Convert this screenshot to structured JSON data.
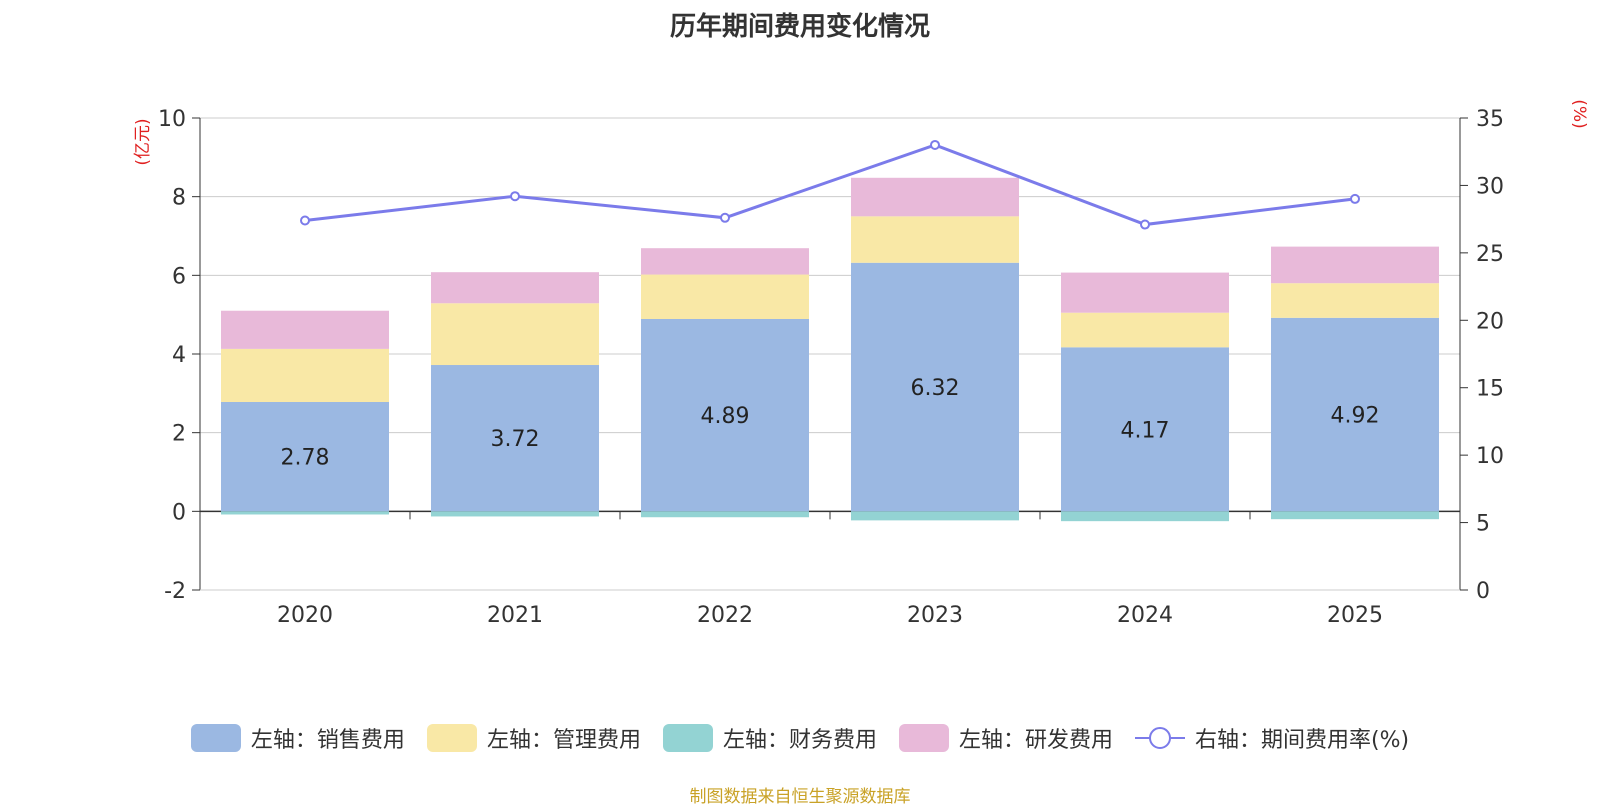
{
  "title": "历年期间费用变化情况",
  "source": "制图数据来自恒生聚源数据库",
  "chart_data": {
    "type": "bar",
    "stacked": true,
    "categories": [
      "2020",
      "2021",
      "2022",
      "2023",
      "2024",
      "2025"
    ],
    "left_axis": {
      "unit_label": "(亿元)",
      "min": -2,
      "max": 10,
      "ticks": [
        "-2",
        "0",
        "2",
        "4",
        "6",
        "8",
        "10"
      ]
    },
    "right_axis": {
      "unit_label": "(%)",
      "min": 0,
      "max": 35,
      "ticks": [
        "0",
        "5",
        "10",
        "15",
        "20",
        "25",
        "30",
        "35"
      ]
    },
    "series": [
      {
        "name": "左轴：销售费用",
        "type": "bar",
        "axis": "left",
        "color": "#9bb8e2",
        "values": [
          2.78,
          3.72,
          4.89,
          6.32,
          4.17,
          4.92
        ],
        "labels": [
          "2.78",
          "3.72",
          "4.89",
          "6.32",
          "4.17",
          "4.92"
        ]
      },
      {
        "name": "左轴：管理费用",
        "type": "bar",
        "axis": "left",
        "color": "#f9e8a6",
        "values": [
          1.35,
          1.57,
          1.13,
          1.18,
          0.88,
          0.88
        ]
      },
      {
        "name": "左轴：财务费用",
        "type": "bar",
        "axis": "left",
        "color": "#93d3d3",
        "values": [
          -0.08,
          -0.13,
          -0.15,
          -0.23,
          -0.25,
          -0.2
        ]
      },
      {
        "name": "左轴：研发费用",
        "type": "bar",
        "axis": "left",
        "color": "#e8b9d9",
        "values": [
          0.97,
          0.79,
          0.67,
          0.98,
          1.02,
          0.93
        ]
      },
      {
        "name": "右轴：期间费用率(%)",
        "type": "line",
        "axis": "right",
        "color": "#7b7bea",
        "values": [
          27.4,
          29.2,
          27.6,
          33.0,
          27.1,
          29.0
        ]
      }
    ]
  }
}
